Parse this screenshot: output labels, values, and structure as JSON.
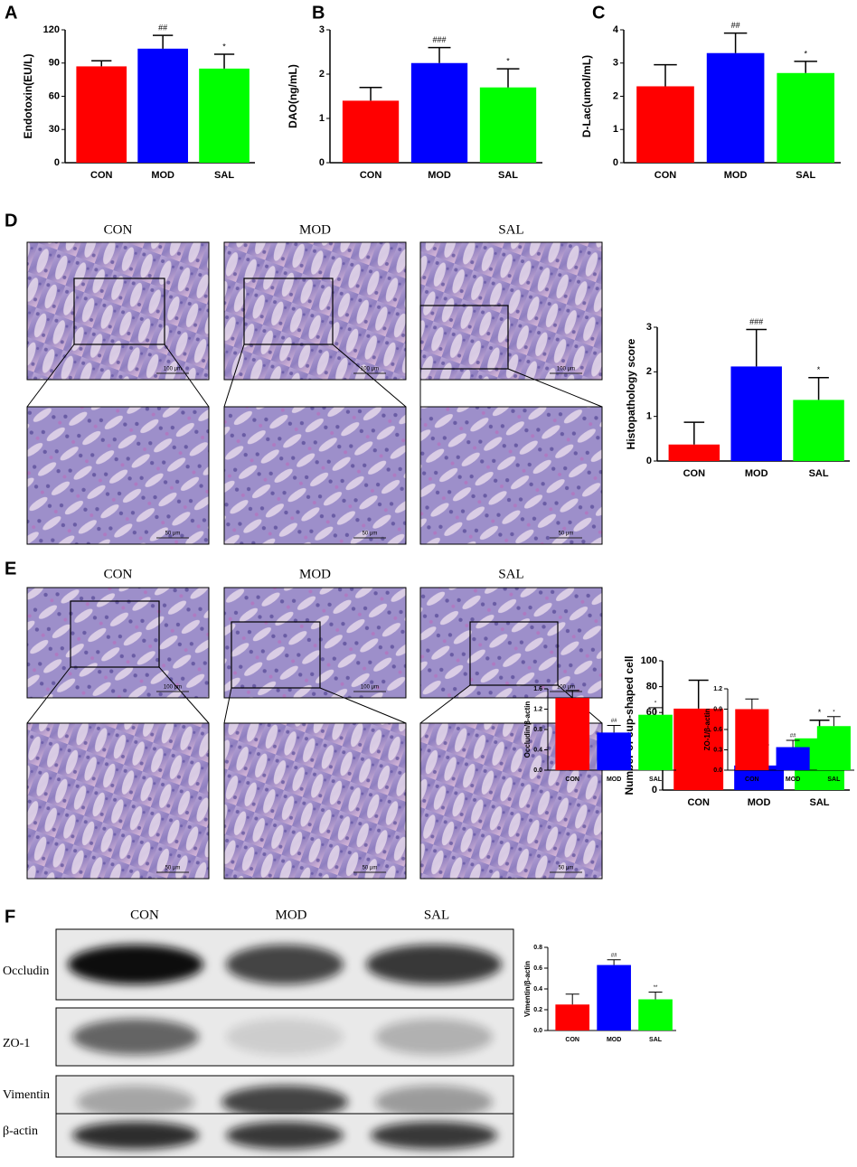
{
  "panel_labels": [
    "A",
    "B",
    "C",
    "D",
    "E",
    "F"
  ],
  "micrographs": {
    "D": {
      "columns": [
        "CON",
        "MOD",
        "SAL"
      ],
      "scale_top": "100 μm",
      "scale_bottom": "50 μm"
    },
    "E": {
      "columns": [
        "CON",
        "MOD",
        "SAL"
      ],
      "scale_top": "100 μm",
      "scale_bottom": "50 μm"
    }
  },
  "blot": {
    "columns": [
      "CON",
      "MOD",
      "SAL"
    ],
    "rows": [
      "Occludin",
      "ZO-1",
      "Vimentin",
      "β-actin"
    ]
  },
  "chart_data": [
    {
      "type": "bar",
      "ylabel": "Endotoxin(EU/L)",
      "categories": [
        "CON",
        "MOD",
        "SAL"
      ],
      "values": [
        87,
        103,
        85
      ],
      "errors": [
        5,
        12,
        13
      ],
      "annotations": [
        null,
        "##",
        "*"
      ],
      "colors": [
        "#ff0000",
        "#0000ff",
        "#00ff00"
      ],
      "ylim": [
        0,
        120
      ],
      "yticks": [
        0,
        30,
        60,
        90,
        120
      ]
    },
    {
      "type": "bar",
      "ylabel": "DAO(ng/mL)",
      "categories": [
        "CON",
        "MOD",
        "SAL"
      ],
      "values": [
        1.4,
        2.25,
        1.7
      ],
      "errors": [
        0.3,
        0.35,
        0.42
      ],
      "annotations": [
        null,
        "###",
        "*"
      ],
      "colors": [
        "#ff0000",
        "#0000ff",
        "#00ff00"
      ],
      "ylim": [
        0,
        3
      ],
      "yticks": [
        0,
        1,
        2,
        3
      ]
    },
    {
      "type": "bar",
      "ylabel": "D-Lac(umol/mL)",
      "categories": [
        "CON",
        "MOD",
        "SAL"
      ],
      "values": [
        2.3,
        3.3,
        2.7
      ],
      "errors": [
        0.65,
        0.6,
        0.35
      ],
      "annotations": [
        null,
        "##",
        "*"
      ],
      "colors": [
        "#ff0000",
        "#0000ff",
        "#00ff00"
      ],
      "ylim": [
        0,
        4
      ],
      "yticks": [
        0,
        1,
        2,
        3,
        4
      ]
    },
    {
      "type": "bar",
      "ylabel": "Histopathology score",
      "categories": [
        "CON",
        "MOD",
        "SAL"
      ],
      "values": [
        0.37,
        2.12,
        1.37
      ],
      "errors": [
        0.5,
        0.83,
        0.5
      ],
      "annotations": [
        null,
        "###",
        "*"
      ],
      "colors": [
        "#ff0000",
        "#0000ff",
        "#00ff00"
      ],
      "ylim": [
        0,
        3
      ],
      "yticks": [
        0,
        1,
        2,
        3
      ]
    },
    {
      "type": "bar",
      "ylabel": "Number of cup-shaped cell",
      "categories": [
        "CON",
        "MOD",
        "SAL"
      ],
      "values": [
        63,
        19,
        40
      ],
      "errors": [
        22,
        16,
        14
      ],
      "annotations": [
        null,
        "###",
        "*"
      ],
      "colors": [
        "#ff0000",
        "#0000ff",
        "#00ff00"
      ],
      "ylim": [
        0,
        100
      ],
      "yticks": [
        0,
        20,
        40,
        60,
        80,
        100
      ]
    },
    {
      "type": "bar",
      "ylabel": "Occludin/β-actin",
      "categories": [
        "CON",
        "MOD",
        "SAL"
      ],
      "values": [
        1.42,
        0.74,
        1.09
      ],
      "errors": [
        0.15,
        0.14,
        0.14
      ],
      "annotations": [
        null,
        "##",
        "*"
      ],
      "colors": [
        "#ff0000",
        "#0000ff",
        "#00ff00"
      ],
      "ylim": [
        0,
        1.6
      ],
      "yticks": [
        {
          "value": 0,
          "label": "0.0"
        },
        0.4,
        0.8,
        1.2,
        1.6
      ]
    },
    {
      "type": "bar",
      "ylabel": "ZO-1/β-actin",
      "categories": [
        "CON",
        "MOD",
        "SAL"
      ],
      "values": [
        0.9,
        0.34,
        0.65
      ],
      "errors": [
        0.15,
        0.1,
        0.14
      ],
      "annotations": [
        null,
        "##",
        "*"
      ],
      "colors": [
        "#ff0000",
        "#0000ff",
        "#00ff00"
      ],
      "ylim": [
        0,
        1.2
      ],
      "yticks": [
        {
          "value": 0,
          "label": "0.0"
        },
        0.3,
        0.6,
        0.9,
        1.2
      ]
    },
    {
      "type": "bar",
      "ylabel": "Vimentin/β-actin",
      "categories": [
        "CON",
        "MOD",
        "SAL"
      ],
      "values": [
        0.25,
        0.63,
        0.3
      ],
      "errors": [
        0.1,
        0.05,
        0.07
      ],
      "annotations": [
        null,
        "##",
        "**"
      ],
      "colors": [
        "#ff0000",
        "#0000ff",
        "#00ff00"
      ],
      "ylim": [
        0,
        0.8
      ],
      "yticks": [
        {
          "value": 0,
          "label": "0.0"
        },
        0.2,
        0.4,
        0.6,
        0.8
      ]
    }
  ]
}
